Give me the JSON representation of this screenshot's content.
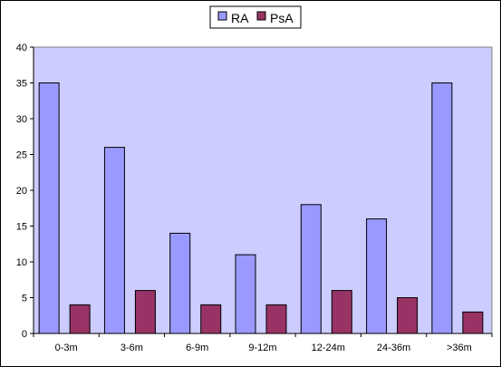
{
  "chart_data": {
    "type": "bar",
    "categories": [
      "0-3m",
      "3-6m",
      "6-9m",
      "9-12m",
      "12-24m",
      "24-36m",
      ">36m"
    ],
    "series": [
      {
        "name": "RA",
        "values": [
          35,
          26,
          14,
          11,
          18,
          16,
          35
        ],
        "color": "#9999ff"
      },
      {
        "name": "PsA",
        "values": [
          4,
          6,
          4,
          4,
          6,
          5,
          3
        ],
        "color": "#993366"
      }
    ],
    "ylim": [
      0,
      40
    ],
    "yticks": [
      "0",
      "5",
      "10",
      "15",
      "20",
      "25",
      "30",
      "35",
      "40"
    ],
    "plot_background": "#ccccff",
    "grid": false,
    "legend_position": "top-center"
  }
}
